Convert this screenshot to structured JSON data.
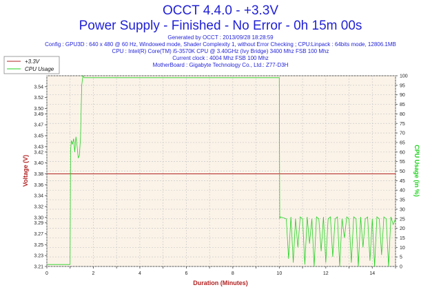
{
  "header": {
    "title": "OCCT 4.4.0 - +3.3V",
    "subtitle": "Power Supply - Finished - No Error - 0h 15m 00s",
    "info_lines": [
      "Generated by OCCT : 2013/09/28 18:28:59",
      "Config : GPU3D : 640 x 480 @ 60 Hz, Windowed mode, Shader Complexity 1, without Error Checking ; CPU:Linpack : 64bits mode, 12806.1MB",
      "CPU : Intel(R) Core(TM) i5-3570K CPU @ 3.40GHz (Ivy Bridge) 3400 Mhz FSB 100 Mhz",
      "Current clock : 4004 Mhz FSB 100 Mhz",
      "MotherBoard : Gigabyte Technology Co., Ltd.: Z77-D3H"
    ]
  },
  "colors": {
    "voltage": "#b22222",
    "cpu": "#1ed21e",
    "plot_bg": "#fbf3e8",
    "grid": "#c8c8c8",
    "title": "#1f1fd6"
  },
  "chart_data": {
    "type": "line",
    "xlabel": "Duration (Minutes)",
    "ylabel": "Voltage (V)",
    "y2label": "CPU Usage (in %)",
    "xlim": [
      0,
      15
    ],
    "ylim": [
      3.21,
      3.56
    ],
    "y2lim": [
      0,
      100
    ],
    "x_ticks": [
      0,
      2,
      4,
      6,
      8,
      10,
      12,
      14
    ],
    "y_ticks": [
      "3.21",
      "3.23",
      "3.25",
      "3.27",
      "3.29",
      "3.30",
      "3.32",
      "3.34",
      "3.36",
      "3.38",
      "3.40",
      "3.42",
      "3.43",
      "3.45",
      "3.47",
      "3.49",
      "3.50",
      "3.52",
      "3.54"
    ],
    "y2_ticks": [
      0,
      5,
      10,
      15,
      20,
      25,
      30,
      35,
      40,
      45,
      50,
      55,
      60,
      65,
      70,
      75,
      80,
      85,
      90,
      95,
      100
    ],
    "grid": true,
    "legend": {
      "position": "top-left",
      "entries": [
        "+3.3V",
        "CPU Usage"
      ]
    },
    "series": [
      {
        "name": "+3.3V",
        "axis": "left",
        "x": [
          0,
          15
        ],
        "values": [
          3.38,
          3.38
        ]
      },
      {
        "name": "CPU Usage",
        "axis": "right",
        "x": [
          0,
          1.0,
          1.02,
          1.05,
          1.1,
          1.15,
          1.2,
          1.25,
          1.3,
          1.35,
          1.4,
          1.45,
          1.5,
          1.55,
          1.6,
          2.0,
          3.0,
          4.0,
          5.0,
          6.0,
          7.0,
          8.0,
          9.0,
          9.9,
          10.0,
          10.02,
          10.05,
          10.3,
          10.4,
          10.5,
          10.6,
          10.7,
          10.8,
          10.9,
          11.0,
          11.1,
          11.2,
          11.3,
          11.4,
          11.5,
          11.6,
          11.7,
          11.8,
          11.9,
          12.0,
          12.1,
          12.2,
          12.3,
          12.4,
          12.5,
          12.6,
          12.7,
          12.8,
          12.9,
          13.0,
          13.1,
          13.2,
          13.3,
          13.4,
          13.5,
          13.6,
          13.7,
          13.8,
          13.9,
          14.0,
          14.1,
          14.2,
          14.3,
          14.4,
          14.5,
          14.6,
          14.7,
          14.8,
          14.9,
          15.0
        ],
        "values": [
          1,
          1,
          60,
          66,
          64,
          67,
          60,
          68,
          63,
          57,
          58,
          68,
          95,
          100,
          99,
          99,
          99,
          99,
          99,
          99,
          99,
          99,
          99,
          99,
          99,
          25,
          26,
          25,
          4,
          26,
          2,
          25,
          10,
          26,
          25,
          1,
          26,
          12,
          25,
          0,
          26,
          25,
          8,
          26,
          2,
          25,
          26,
          5,
          25,
          26,
          0,
          25,
          15,
          26,
          25,
          2,
          26,
          25,
          0,
          26,
          10,
          25,
          26,
          3,
          25,
          0,
          26,
          25,
          6,
          26,
          25,
          0,
          26,
          22,
          25
        ]
      }
    ]
  }
}
